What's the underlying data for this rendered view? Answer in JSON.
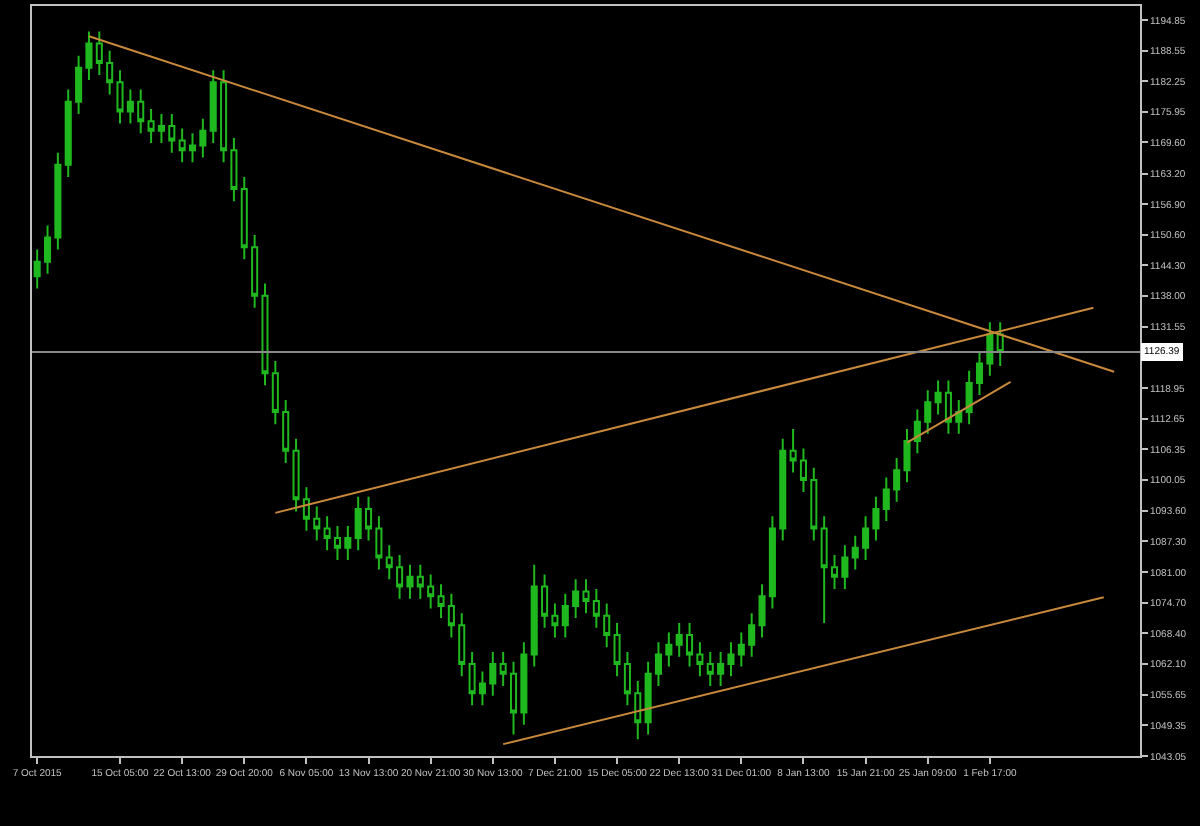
{
  "chart_data": {
    "type": "candlestick",
    "categories": [
      "7 Oct 2015",
      null,
      null,
      null,
      null,
      null,
      null,
      null,
      "15 Oct 05:00",
      null,
      null,
      null,
      null,
      null,
      "22 Oct 13:00",
      null,
      null,
      null,
      null,
      null,
      "29 Oct 20:00",
      null,
      null,
      null,
      null,
      null,
      "6 Nov 05:00",
      null,
      null,
      null,
      null,
      null,
      "13 Nov 13:00",
      null,
      null,
      null,
      null,
      null,
      "20 Nov 21:00",
      null,
      null,
      null,
      null,
      null,
      "30 Nov 13:00",
      null,
      null,
      null,
      null,
      null,
      "7 Dec 21:00",
      null,
      null,
      null,
      null,
      null,
      "15 Dec 05:00",
      null,
      null,
      null,
      null,
      null,
      "22 Dec 13:00",
      null,
      null,
      null,
      null,
      null,
      "31 Dec 01:00",
      null,
      null,
      null,
      null,
      null,
      "8 Jan 13:00",
      null,
      null,
      null,
      null,
      null,
      "15 Jan 21:00",
      null,
      null,
      null,
      null,
      null,
      "25 Jan 09:00",
      null,
      null,
      null,
      null,
      null,
      "1 Feb 17:00",
      null,
      null,
      null,
      null,
      null,
      null,
      null,
      null,
      null,
      null,
      null,
      null,
      null,
      null
    ],
    "series": [
      {
        "color": "#1fb81f",
        "ohlc": [
          [
            1142,
            1147.5,
            1139.5,
            1145
          ],
          [
            1145,
            1152.5,
            1142.5,
            1150
          ],
          [
            1150,
            1167.5,
            1147.5,
            1165
          ],
          [
            1165,
            1180.5,
            1162.5,
            1178
          ],
          [
            1178,
            1187.5,
            1175.5,
            1185
          ],
          [
            1185,
            1192.5,
            1182.5,
            1190
          ],
          [
            1190,
            1192.5,
            1183.5,
            1186
          ],
          [
            1186,
            1188.5,
            1179.5,
            1182
          ],
          [
            1182,
            1184.5,
            1173.5,
            1176
          ],
          [
            1176,
            1180.5,
            1173.5,
            1178
          ],
          [
            1178,
            1180.5,
            1171.5,
            1174
          ],
          [
            1174,
            1176.5,
            1169.5,
            1172
          ],
          [
            1172,
            1175.5,
            1169.5,
            1173
          ],
          [
            1173,
            1175.5,
            1167.5,
            1170
          ],
          [
            1170,
            1172.5,
            1165.5,
            1168
          ],
          [
            1168,
            1171.5,
            1165.5,
            1169
          ],
          [
            1169,
            1174.5,
            1166.5,
            1172
          ],
          [
            1172,
            1184.5,
            1169.5,
            1182
          ],
          [
            1182,
            1184.5,
            1165.5,
            1168
          ],
          [
            1168,
            1170.5,
            1157.5,
            1160
          ],
          [
            1160,
            1162.5,
            1145.5,
            1148
          ],
          [
            1148,
            1150.5,
            1135.5,
            1138
          ],
          [
            1138,
            1140.5,
            1119.5,
            1122
          ],
          [
            1122,
            1124.5,
            1111.5,
            1114
          ],
          [
            1114,
            1116.5,
            1103.5,
            1106
          ],
          [
            1106,
            1108.5,
            1093.5,
            1096
          ],
          [
            1096,
            1098.5,
            1089.5,
            1092
          ],
          [
            1092,
            1094.5,
            1087.5,
            1090
          ],
          [
            1090,
            1092.5,
            1085.5,
            1088
          ],
          [
            1088,
            1090.5,
            1083.5,
            1086
          ],
          [
            1086,
            1090.5,
            1083.5,
            1088
          ],
          [
            1088,
            1096.5,
            1085.5,
            1094
          ],
          [
            1094,
            1096.5,
            1087.5,
            1090
          ],
          [
            1090,
            1092.5,
            1081.5,
            1084
          ],
          [
            1084,
            1086.5,
            1079.5,
            1082
          ],
          [
            1082,
            1084.5,
            1075.5,
            1078
          ],
          [
            1078,
            1082.5,
            1075.5,
            1080
          ],
          [
            1080,
            1082.5,
            1075.5,
            1078
          ],
          [
            1078,
            1080.5,
            1073.5,
            1076
          ],
          [
            1076,
            1078.5,
            1071.5,
            1074
          ],
          [
            1074,
            1076.5,
            1067.5,
            1070
          ],
          [
            1070,
            1072.5,
            1059.5,
            1062
          ],
          [
            1062,
            1064.5,
            1053.5,
            1056
          ],
          [
            1056,
            1060.5,
            1053.5,
            1058
          ],
          [
            1058,
            1064.5,
            1055.5,
            1062
          ],
          [
            1062,
            1064.5,
            1057.5,
            1060
          ],
          [
            1060,
            1062.5,
            1047.5,
            1052
          ],
          [
            1052,
            1066.5,
            1049.5,
            1064
          ],
          [
            1064,
            1082.5,
            1061.5,
            1078
          ],
          [
            1078,
            1080.5,
            1069.5,
            1072
          ],
          [
            1072,
            1074.5,
            1067.5,
            1070
          ],
          [
            1070,
            1076.5,
            1067.5,
            1074
          ],
          [
            1074,
            1079.5,
            1071.5,
            1077
          ],
          [
            1077,
            1079.5,
            1072.5,
            1075
          ],
          [
            1075,
            1077.5,
            1069.5,
            1072
          ],
          [
            1072,
            1074.5,
            1065.5,
            1068
          ],
          [
            1068,
            1070.5,
            1059.5,
            1062
          ],
          [
            1062,
            1064.5,
            1053.5,
            1056
          ],
          [
            1056,
            1058.5,
            1046.5,
            1050
          ],
          [
            1050,
            1062.5,
            1047.5,
            1060
          ],
          [
            1060,
            1066.5,
            1057.5,
            1064
          ],
          [
            1064,
            1068.5,
            1061.5,
            1066
          ],
          [
            1066,
            1070.5,
            1063.5,
            1068
          ],
          [
            1068,
            1070.5,
            1061.5,
            1064
          ],
          [
            1064,
            1066.5,
            1059.5,
            1062
          ],
          [
            1062,
            1064.5,
            1057.5,
            1060
          ],
          [
            1060,
            1064.5,
            1057.5,
            1062
          ],
          [
            1062,
            1066.5,
            1059.5,
            1064
          ],
          [
            1064,
            1068.5,
            1061.5,
            1066
          ],
          [
            1066,
            1072.5,
            1063.5,
            1070
          ],
          [
            1070,
            1078.5,
            1067.5,
            1076
          ],
          [
            1076,
            1092.5,
            1073.5,
            1090
          ],
          [
            1090,
            1108.5,
            1087.5,
            1106
          ],
          [
            1106,
            1110.5,
            1101.5,
            1104
          ],
          [
            1104,
            1106.5,
            1097.5,
            1100
          ],
          [
            1100,
            1102.5,
            1087.5,
            1090
          ],
          [
            1090,
            1092.5,
            1070.5,
            1082
          ],
          [
            1082,
            1084.5,
            1077.5,
            1080
          ],
          [
            1080,
            1086.5,
            1077.5,
            1084
          ],
          [
            1084,
            1088.5,
            1081.5,
            1086
          ],
          [
            1086,
            1092.5,
            1083.5,
            1090
          ],
          [
            1090,
            1096.5,
            1087.5,
            1094
          ],
          [
            1094,
            1100.5,
            1091.5,
            1098
          ],
          [
            1098,
            1104.5,
            1095.5,
            1102
          ],
          [
            1102,
            1110.5,
            1099.5,
            1108
          ],
          [
            1108,
            1114.5,
            1105.5,
            1112
          ],
          [
            1112,
            1118.5,
            1109.5,
            1116
          ],
          [
            1116,
            1120.5,
            1113.5,
            1118
          ],
          [
            1118,
            1120.5,
            1109.5,
            1112
          ],
          [
            1112,
            1116.5,
            1109.5,
            1114
          ],
          [
            1114,
            1122.5,
            1111.5,
            1120
          ],
          [
            1120,
            1126.5,
            1117.5,
            1124
          ],
          [
            1124,
            1132.5,
            1121.5,
            1130
          ],
          [
            1130,
            1132.5,
            1123.5,
            1126.39
          ],
          null,
          null,
          null,
          null,
          null,
          null,
          null,
          null,
          null,
          null,
          null,
          null,
          null
        ]
      },
      {
        "type": "line",
        "color": "#c8893c",
        "values": [
          null,
          null,
          null,
          null,
          null,
          1191.5,
          null,
          null,
          null,
          null,
          null,
          null,
          null,
          null,
          null,
          null,
          null,
          null,
          null,
          null,
          null,
          null,
          null,
          null,
          null,
          null,
          null,
          null,
          null,
          null,
          null,
          null,
          null,
          null,
          null,
          null,
          null,
          null,
          null,
          null,
          null,
          null,
          null,
          null,
          null,
          null,
          null,
          null,
          null,
          null,
          null,
          null,
          null,
          null,
          null,
          null,
          null,
          null,
          null,
          null,
          null,
          null,
          null,
          null,
          null,
          null,
          null,
          null,
          null,
          null,
          null,
          null,
          null,
          null,
          null,
          null,
          null,
          null,
          null,
          null,
          null,
          null,
          null,
          null,
          null,
          null,
          null,
          null,
          null,
          null,
          null,
          null,
          null,
          null,
          null,
          null,
          null,
          null,
          null,
          null,
          null,
          null,
          null,
          null,
          1122.3,
          null,
          null
        ]
      },
      {
        "type": "line",
        "color": "#c8893c",
        "values": [
          null,
          null,
          null,
          null,
          null,
          null,
          null,
          null,
          null,
          null,
          null,
          null,
          null,
          null,
          null,
          null,
          null,
          null,
          null,
          null,
          null,
          null,
          null,
          1093.2,
          null,
          null,
          null,
          null,
          null,
          null,
          null,
          null,
          null,
          null,
          null,
          null,
          null,
          null,
          null,
          null,
          null,
          null,
          null,
          null,
          null,
          null,
          null,
          null,
          null,
          null,
          null,
          null,
          null,
          null,
          null,
          null,
          null,
          null,
          null,
          null,
          null,
          null,
          null,
          null,
          null,
          null,
          null,
          null,
          null,
          null,
          null,
          null,
          null,
          null,
          null,
          null,
          null,
          null,
          null,
          null,
          null,
          null,
          null,
          null,
          null,
          null,
          null,
          null,
          null,
          null,
          null,
          null,
          null,
          null,
          null,
          null,
          null,
          null,
          null,
          null,
          null,
          null,
          1135.5,
          null,
          null,
          null,
          null
        ]
      },
      {
        "type": "line",
        "color": "#c8893c",
        "values": [
          null,
          null,
          null,
          null,
          null,
          null,
          null,
          null,
          null,
          null,
          null,
          null,
          null,
          null,
          null,
          null,
          null,
          null,
          null,
          null,
          null,
          null,
          null,
          null,
          null,
          null,
          null,
          null,
          null,
          null,
          null,
          null,
          null,
          null,
          null,
          null,
          null,
          null,
          null,
          null,
          null,
          null,
          null,
          null,
          null,
          1045.5,
          null,
          null,
          null,
          null,
          null,
          null,
          null,
          null,
          null,
          null,
          null,
          null,
          null,
          null,
          null,
          null,
          null,
          null,
          null,
          null,
          null,
          null,
          null,
          null,
          null,
          null,
          null,
          null,
          null,
          null,
          null,
          null,
          null,
          null,
          null,
          null,
          null,
          null,
          null,
          null,
          null,
          null,
          null,
          null,
          null,
          null,
          null,
          null,
          null,
          null,
          null,
          null,
          null,
          null,
          null,
          null,
          null,
          1075.8,
          null,
          null,
          null
        ]
      },
      {
        "type": "line",
        "color": "#c8893c",
        "values": [
          null,
          null,
          null,
          null,
          null,
          null,
          null,
          null,
          null,
          null,
          null,
          null,
          null,
          null,
          null,
          null,
          null,
          null,
          null,
          null,
          null,
          null,
          null,
          null,
          null,
          null,
          null,
          null,
          null,
          null,
          null,
          null,
          null,
          null,
          null,
          null,
          null,
          null,
          null,
          null,
          null,
          null,
          null,
          null,
          null,
          null,
          null,
          null,
          null,
          null,
          null,
          null,
          null,
          null,
          null,
          null,
          null,
          null,
          null,
          null,
          null,
          null,
          null,
          null,
          null,
          null,
          null,
          null,
          null,
          null,
          null,
          null,
          null,
          null,
          null,
          null,
          null,
          null,
          null,
          null,
          null,
          null,
          null,
          null,
          1107.7,
          null,
          null,
          null,
          null,
          null,
          null,
          null,
          null,
          null,
          1120.2,
          null,
          null,
          null,
          null,
          null,
          null,
          null,
          null,
          null,
          null,
          null,
          null
        ]
      }
    ],
    "ylim": [
      1043.05,
      1197.75
    ],
    "yticks": [
      1043.05,
      1049.35,
      1055.65,
      {
        "value": 1062.1,
        "label": "1062.10"
      },
      {
        "value": 1068.4,
        "label": "1068.40"
      },
      {
        "value": 1074.7,
        "label": "1074.70"
      },
      {
        "value": 1081,
        "label": "1081.00"
      },
      {
        "value": 1087.3,
        "label": "1087.30"
      },
      {
        "value": 1093.6,
        "label": "1093.60"
      },
      1100.05,
      1106.35,
      1112.65,
      1118.95,
      1131.55,
      {
        "value": 1138,
        "label": "1138.00"
      },
      {
        "value": 1144.3,
        "label": "1144.30"
      },
      {
        "value": 1150.6,
        "label": "1150.60"
      },
      {
        "value": 1156.9,
        "label": "1156.90"
      },
      {
        "value": 1163.2,
        "label": "1163.20"
      },
      {
        "value": 1169.6,
        "label": "1169.60"
      },
      1175.95,
      1182.25,
      1188.55,
      1194.85
    ],
    "ref_lines": [
      {
        "axis": "y",
        "value": 1126.39,
        "label": "1126.39",
        "color": "#8a8a8a"
      }
    ],
    "grid": false
  }
}
